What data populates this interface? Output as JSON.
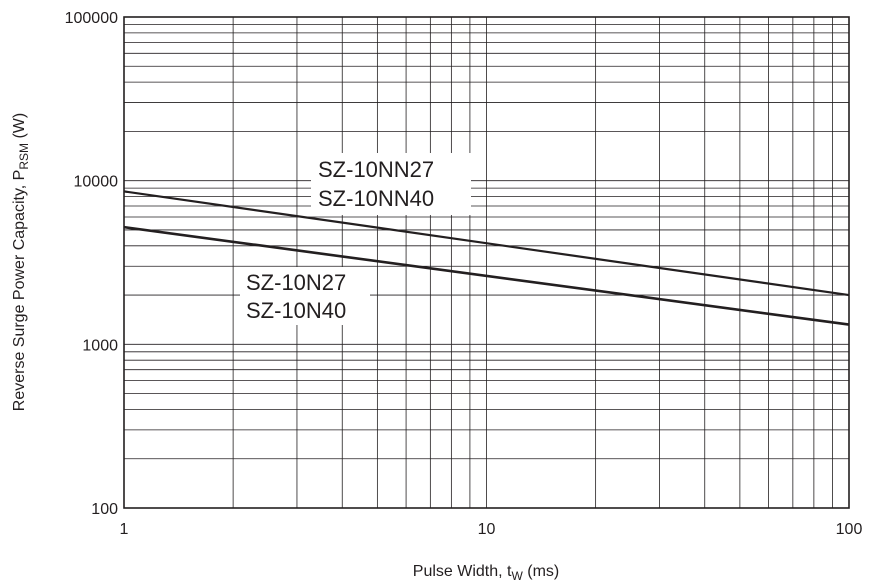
{
  "chart_data": {
    "type": "line",
    "x_scale": "log",
    "y_scale": "log",
    "xlim": [
      1,
      100
    ],
    "ylim": [
      100,
      100000
    ],
    "grid": true,
    "x_ticks": [
      "1",
      "10",
      "100"
    ],
    "y_ticks": [
      "100",
      "1000",
      "10000",
      "100000"
    ],
    "xlabel": {
      "main": "Pulse Width, t",
      "sub": "W",
      "unit": " (ms)"
    },
    "ylabel": {
      "main": "Reverse Surge Power Capacity, P",
      "sub": "RSM",
      "unit": " (W)"
    },
    "series": [
      {
        "name_lines": [
          "SZ-10NN27",
          "SZ-10NN40"
        ],
        "x": [
          1,
          100
        ],
        "y": [
          8600,
          2000
        ]
      },
      {
        "name_lines": [
          "SZ-10N27",
          "SZ-10N40"
        ],
        "x": [
          1,
          100
        ],
        "y": [
          5200,
          1320
        ]
      }
    ]
  }
}
